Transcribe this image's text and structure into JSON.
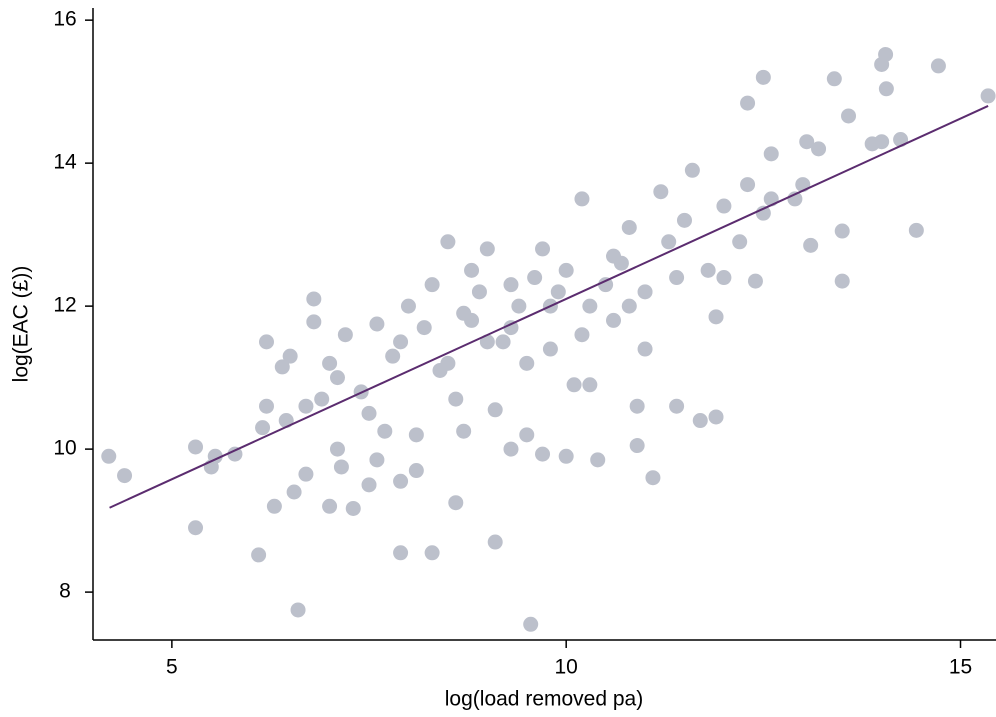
{
  "chart_data": {
    "type": "scatter",
    "xlabel": "log(load removed pa)",
    "ylabel": "log(EAC (£))",
    "xlim": [
      4,
      15.45
    ],
    "ylim": [
      7.33,
      16.17
    ],
    "xticks": [
      5,
      10,
      15
    ],
    "yticks": [
      8,
      10,
      12,
      14,
      16
    ],
    "points": {
      "color": "#bcc0cb",
      "x": [
        4.2,
        4.4,
        5.3,
        5.3,
        5.5,
        5.55,
        5.8,
        6.1,
        6.15,
        6.2,
        6.2,
        6.3,
        6.4,
        6.45,
        6.5,
        6.55,
        6.6,
        6.7,
        6.7,
        6.8,
        6.8,
        6.9,
        7.0,
        7.0,
        7.1,
        7.1,
        7.15,
        7.2,
        7.3,
        7.4,
        7.5,
        7.5,
        7.6,
        7.6,
        7.7,
        7.8,
        7.9,
        7.9,
        8.0,
        8.1,
        8.1,
        8.2,
        8.3,
        8.3,
        7.9,
        8.5,
        8.5,
        8.6,
        8.7,
        8.8,
        8.9,
        9.0,
        9.1,
        9.1,
        9.2,
        9.3,
        9.4,
        9.5,
        9.6,
        9.7,
        9.7,
        9.8,
        9.9,
        10.0,
        10.0,
        10.1,
        9.55,
        10.2,
        10.3,
        10.4,
        10.5,
        10.6,
        10.7,
        10.8,
        10.9,
        11.0,
        11.1,
        11.2,
        11.3,
        11.4,
        11.5,
        11.6,
        11.7,
        11.8,
        12.0,
        12.2,
        12.3,
        12.4,
        12.6,
        12.5,
        12.6,
        13.0,
        13.1,
        13.05,
        13.5,
        13.4,
        13.5,
        13.58,
        13.88,
        14.0,
        14.05,
        14.06,
        14.24,
        14.44,
        14.72,
        15.35,
        12.3,
        11.9,
        11.0,
        10.3,
        9.0,
        8.8,
        8.6,
        8.4,
        8.7,
        9.3,
        9.8,
        10.6,
        11.4,
        12.9,
        13.2,
        14.0,
        10.2,
        9.5,
        11.9,
        10.9,
        10.8,
        9.3,
        12.5,
        12.0
      ],
      "y": [
        9.9,
        9.63,
        10.03,
        8.9,
        9.75,
        9.9,
        9.93,
        8.52,
        10.3,
        11.5,
        10.6,
        9.2,
        11.15,
        10.4,
        11.3,
        9.4,
        7.75,
        10.6,
        9.65,
        12.1,
        11.78,
        10.7,
        11.2,
        9.2,
        10.0,
        11.0,
        9.75,
        11.6,
        9.17,
        10.8,
        9.5,
        10.5,
        11.75,
        9.85,
        10.25,
        11.3,
        11.5,
        9.55,
        12.0,
        9.7,
        10.2,
        11.7,
        8.55,
        12.3,
        8.55,
        12.9,
        11.2,
        9.25,
        10.25,
        11.8,
        12.2,
        12.8,
        8.7,
        10.55,
        11.5,
        12.3,
        12.0,
        10.2,
        12.4,
        9.93,
        12.8,
        11.4,
        12.2,
        9.9,
        12.5,
        10.9,
        7.55,
        13.5,
        12.0,
        9.85,
        12.3,
        11.8,
        12.6,
        13.1,
        10.05,
        12.2,
        9.6,
        13.6,
        12.9,
        10.6,
        13.2,
        13.9,
        10.4,
        12.5,
        13.4,
        12.9,
        14.84,
        12.35,
        13.5,
        15.2,
        14.13,
        13.7,
        12.85,
        14.3,
        13.05,
        15.18,
        12.35,
        14.66,
        14.27,
        15.38,
        15.52,
        15.04,
        14.33,
        13.06,
        15.36,
        14.94,
        13.7,
        11.85,
        11.4,
        10.9,
        11.5,
        12.5,
        10.7,
        11.1,
        11.9,
        11.7,
        12.0,
        12.7,
        12.4,
        13.5,
        14.2,
        14.3,
        11.6,
        11.2,
        10.45,
        10.6,
        12.0,
        10.0,
        13.3,
        12.4
      ]
    },
    "fit_line": {
      "color": "#5b2c6f",
      "x": [
        4.21,
        15.35
      ],
      "y": [
        9.18,
        14.8
      ]
    }
  }
}
